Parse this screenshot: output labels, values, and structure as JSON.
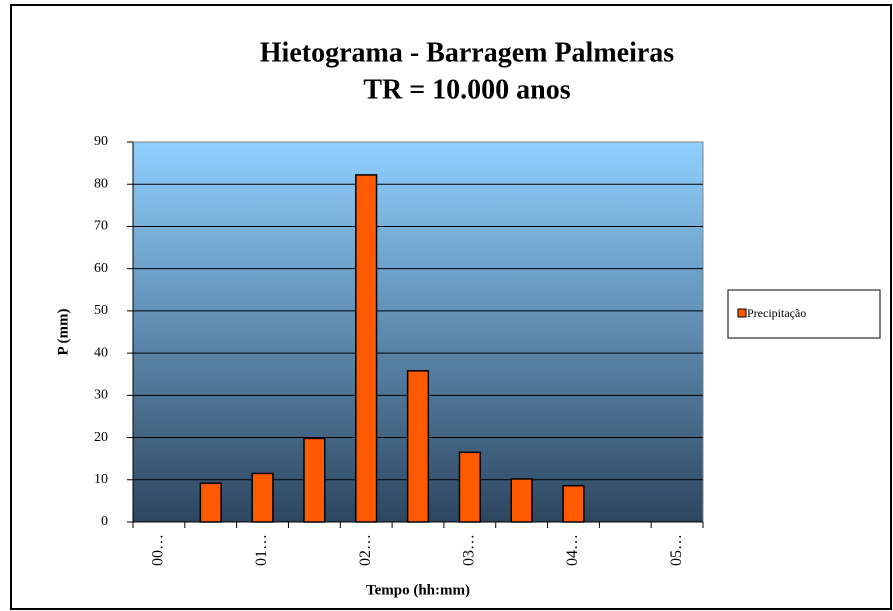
{
  "chart_data": {
    "type": "bar",
    "title": "Hietograma - Barragem Palmeiras",
    "subtitle": "TR = 10.000 anos",
    "x_label": "Tempo (hh:mm)",
    "y_label": "P (mm)",
    "categories": [
      "00…",
      null,
      "01…",
      null,
      "02…",
      null,
      "03…",
      null,
      "04…",
      null,
      "05…"
    ],
    "series": [
      {
        "name": "Precipitação",
        "color": "#ff5a00",
        "values": [
          null,
          9.2,
          11.5,
          19.8,
          82.2,
          35.8,
          16.5,
          10.2,
          8.6,
          null,
          null
        ]
      }
    ],
    "ylim": [
      0,
      90
    ],
    "yticks": [
      0,
      10,
      20,
      30,
      40,
      50,
      60,
      70,
      80,
      90
    ],
    "grid": true,
    "legend": "right"
  }
}
